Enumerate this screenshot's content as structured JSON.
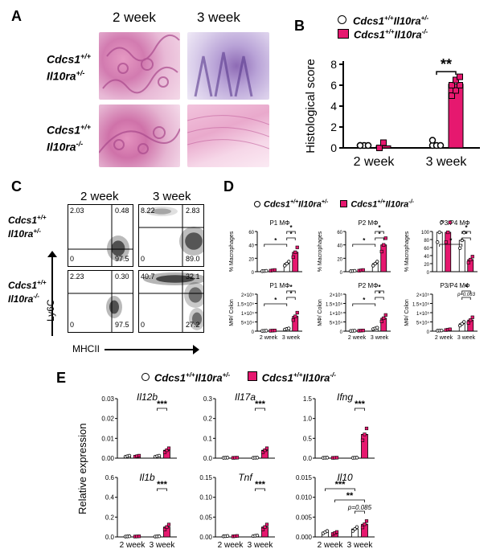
{
  "panelA": {
    "label": "A",
    "col_headers": [
      "2 week",
      "3 week"
    ],
    "row1_label": [
      "Cdcs1",
      "+/+",
      "Il10ra",
      "+/-"
    ],
    "row2_label": [
      "Cdcs1",
      "+/+",
      "Il10ra",
      "-/-"
    ]
  },
  "panelB": {
    "label": "B",
    "legend": [
      {
        "genotype": [
          "Cdcs1",
          "+/+",
          "Il10ra",
          "+/-"
        ],
        "color": "#ffffff"
      },
      {
        "genotype": [
          "Cdcs1",
          "+/+",
          "Il10ra",
          "-/-"
        ],
        "color": "#e6186f"
      }
    ],
    "sig": "**"
  },
  "panelC": {
    "label": "C",
    "col_headers": [
      "2 week",
      "3 week"
    ],
    "row1_label": [
      "Cdcs1",
      "+/+",
      "Il10ra",
      "+/-"
    ],
    "row2_label": [
      "Cdcs1",
      "+/+",
      "Il10ra",
      "-/-"
    ],
    "ylabel": "Ly6C",
    "xlabel": "MHCII",
    "quadrants": [
      {
        "ul": "2.03",
        "ur": "0.48",
        "ll": "0",
        "lr": "97.5"
      },
      {
        "ul": "8.22",
        "ur": "2.83",
        "ll": "0",
        "lr": "89.0"
      },
      {
        "ul": "2.23",
        "ur": "0.30",
        "ll": "0",
        "lr": "97.5"
      },
      {
        "ul": "40.7",
        "ur": "32.1",
        "ll": "0",
        "lr": "27.2"
      }
    ]
  },
  "panelD": {
    "label": "D"
  },
  "panelE": {
    "label": "E",
    "ylabel": "Relative expression"
  },
  "chart_data": [
    {
      "type": "bar",
      "panel": "B",
      "ylabel": "Histological score",
      "categories": [
        "2 week",
        "3 week"
      ],
      "ylim": [
        0,
        8
      ],
      "yticks": [
        0,
        2,
        4,
        6,
        8
      ],
      "series": [
        {
          "name": "Cdcs1+/+Il10ra+/-",
          "values": [
            0,
            0
          ],
          "points": [
            [
              0,
              0,
              0,
              0
            ],
            [
              0,
              0,
              0,
              0.5
            ]
          ]
        },
        {
          "name": "Cdcs1+/+Il10ra-/-",
          "values": [
            0.2,
            6.1
          ],
          "points": [
            [
              0,
              0.5
            ],
            [
              5,
              5.5,
              6,
              6,
              6.5,
              6.8
            ]
          ]
        }
      ],
      "annotations": [
        {
          "text": "**",
          "between": [
            "3 week",
            "3 week"
          ]
        }
      ]
    },
    {
      "type": "bar",
      "panel": "D",
      "title": "P1 MΦ",
      "ylabel": "% Macrophages",
      "ylim": [
        0,
        60
      ],
      "yticks": [
        "0",
        "20",
        "40",
        "60"
      ],
      "categories": [
        "2 week",
        "3 week"
      ],
      "show_xticks": false,
      "series": [
        {
          "name": "Cdcs1+/+Il10ra+/-",
          "values": [
            1,
            12
          ]
        },
        {
          "name": "Cdcs1+/+Il10ra-/-",
          "values": [
            2,
            29
          ]
        }
      ],
      "stars": [
        "*",
        "*",
        "*"
      ]
    },
    {
      "type": "bar",
      "panel": "D",
      "title": "P2 MΦ",
      "ylabel": "% Macrophages",
      "ylim": [
        0,
        60
      ],
      "yticks": [
        "0",
        "20",
        "40",
        "60"
      ],
      "categories": [
        "2 week",
        "3 week"
      ],
      "show_xticks": false,
      "series": [
        {
          "name": "Cdcs1+/+Il10ra+/-",
          "values": [
            1,
            12
          ]
        },
        {
          "name": "Cdcs1+/+Il10ra-/-",
          "values": [
            2,
            40
          ]
        }
      ],
      "stars": [
        "*",
        "*",
        "*"
      ]
    },
    {
      "type": "bar",
      "panel": "D",
      "title": "P3/P4 MΦ",
      "ylabel": "% Macrophages",
      "ylim": [
        0,
        100
      ],
      "yticks": [
        "0",
        "20",
        "40",
        "60",
        "80",
        "100"
      ],
      "categories": [
        "2 week",
        "3 week"
      ],
      "show_xticks": false,
      "series": [
        {
          "name": "Cdcs1+/+Il10ra+/-",
          "values": [
            98,
            78
          ]
        },
        {
          "name": "Cdcs1+/+Il10ra-/-",
          "values": [
            98,
            30
          ]
        }
      ],
      "stars": [
        "*",
        "*",
        "*"
      ]
    },
    {
      "type": "bar",
      "panel": "D",
      "title": "P1 MΦ",
      "ylabel": "MΦ/ Colon",
      "ylim": [
        0,
        200000
      ],
      "yticks": [
        "0",
        "5×10⁴",
        "1×10⁵",
        "1.5×10⁵",
        "2×10⁵"
      ],
      "categories": [
        "2 week",
        "3 week"
      ],
      "show_xticks": true,
      "series": [
        {
          "name": "Cdcs1+/+Il10ra+/-",
          "values": [
            2000,
            12000
          ]
        },
        {
          "name": "Cdcs1+/+Il10ra-/-",
          "values": [
            3000,
            80000
          ]
        }
      ],
      "stars": [
        "*",
        "*",
        "*"
      ]
    },
    {
      "type": "bar",
      "panel": "D",
      "title": "P2 MΦ",
      "ylabel": "MΦ/ Colon",
      "ylim": [
        0,
        200000
      ],
      "yticks": [
        "0",
        "5×10⁴",
        "1×10⁵",
        "1.5×10⁵",
        "2×10⁵"
      ],
      "categories": [
        "2 week",
        "3 week"
      ],
      "show_xticks": true,
      "series": [
        {
          "name": "Cdcs1+/+Il10ra+/-",
          "values": [
            2000,
            15000
          ]
        },
        {
          "name": "Cdcs1+/+Il10ra-/-",
          "values": [
            3000,
            70000
          ]
        }
      ],
      "stars": [
        "*",
        "*",
        "*"
      ]
    },
    {
      "type": "bar",
      "panel": "D",
      "title": "P3/P4 MΦ",
      "ylabel": "MΦ/ Colon",
      "ylim": [
        0,
        200000
      ],
      "yticks": [
        "0",
        "5×10⁴",
        "1×10⁵",
        "1.5×10⁵",
        "2×10⁵"
      ],
      "categories": [
        "2 week",
        "3 week"
      ],
      "show_xticks": true,
      "series": [
        {
          "name": "Cdcs1+/+Il10ra+/-",
          "values": [
            3000,
            40000
          ]
        },
        {
          "name": "Cdcs1+/+Il10ra-/-",
          "values": [
            8000,
            60000
          ]
        }
      ],
      "stars": [
        "*",
        "p=0.063"
      ]
    },
    {
      "type": "bar",
      "panel": "E",
      "title": "Il12b",
      "ylim": [
        0,
        0.03
      ],
      "yticks": [
        "0.00",
        "0.01",
        "0.02",
        "0.03"
      ],
      "categories": [
        "2 week",
        "3 week"
      ],
      "show_xticks": false,
      "series": [
        {
          "name": "Cdcs1+/+Il10ra+/-",
          "values": [
            0.001,
            0.001
          ]
        },
        {
          "name": "Cdcs1+/+Il10ra-/-",
          "values": [
            0.001,
            0.004
          ]
        }
      ],
      "stars": [
        "***"
      ]
    },
    {
      "type": "bar",
      "panel": "E",
      "title": "Il17a",
      "ylim": [
        0,
        0.3
      ],
      "yticks": [
        "0.0",
        "0.1",
        "0.2",
        "0.3"
      ],
      "categories": [
        "2 week",
        "3 week"
      ],
      "show_xticks": false,
      "series": [
        {
          "name": "Cdcs1+/+Il10ra+/-",
          "values": [
            0.002,
            0.002
          ]
        },
        {
          "name": "Cdcs1+/+Il10ra-/-",
          "values": [
            0.002,
            0.04
          ]
        }
      ],
      "stars": [
        "***"
      ]
    },
    {
      "type": "bar",
      "panel": "E",
      "title": "Ifng",
      "ylim": [
        0,
        1.5
      ],
      "yticks": [
        "0.0",
        "0.5",
        "1.0",
        "1.5"
      ],
      "categories": [
        "2 week",
        "3 week"
      ],
      "show_xticks": false,
      "series": [
        {
          "name": "Cdcs1+/+Il10ra+/-",
          "values": [
            0.01,
            0.01
          ]
        },
        {
          "name": "Cdcs1+/+Il10ra-/-",
          "values": [
            0.01,
            0.6
          ]
        }
      ],
      "stars": [
        "***"
      ]
    },
    {
      "type": "bar",
      "panel": "E",
      "title": "Il1b",
      "ylim": [
        0,
        0.6
      ],
      "yticks": [
        "0.0",
        "0.2",
        "0.4",
        "0.6"
      ],
      "categories": [
        "2 week",
        "3 week"
      ],
      "show_xticks": true,
      "series": [
        {
          "name": "Cdcs1+/+Il10ra+/-",
          "values": [
            0.005,
            0.005
          ]
        },
        {
          "name": "Cdcs1+/+Il10ra-/-",
          "values": [
            0.005,
            0.1
          ]
        }
      ],
      "stars": [
        "***"
      ]
    },
    {
      "type": "bar",
      "panel": "E",
      "title": "Tnf",
      "ylim": [
        0,
        0.15
      ],
      "yticks": [
        "0.00",
        "0.05",
        "0.10",
        "0.15"
      ],
      "categories": [
        "2 week",
        "3 week"
      ],
      "show_xticks": true,
      "series": [
        {
          "name": "Cdcs1+/+Il10ra+/-",
          "values": [
            0.002,
            0.003
          ]
        },
        {
          "name": "Cdcs1+/+Il10ra-/-",
          "values": [
            0.002,
            0.025
          ]
        }
      ],
      "stars": [
        "***"
      ]
    },
    {
      "type": "bar",
      "panel": "E",
      "title": "Il10",
      "ylim": [
        0,
        0.015
      ],
      "yticks": [
        "0.000",
        "0.005",
        "0.010",
        "0.015"
      ],
      "categories": [
        "2 week",
        "3 week"
      ],
      "show_xticks": true,
      "series": [
        {
          "name": "Cdcs1+/+Il10ra+/-",
          "values": [
            0.0012,
            0.002
          ]
        },
        {
          "name": "Cdcs1+/+Il10ra-/-",
          "values": [
            0.001,
            0.0032
          ]
        }
      ],
      "stars": [
        "***",
        "**",
        "p=0.085"
      ]
    }
  ]
}
